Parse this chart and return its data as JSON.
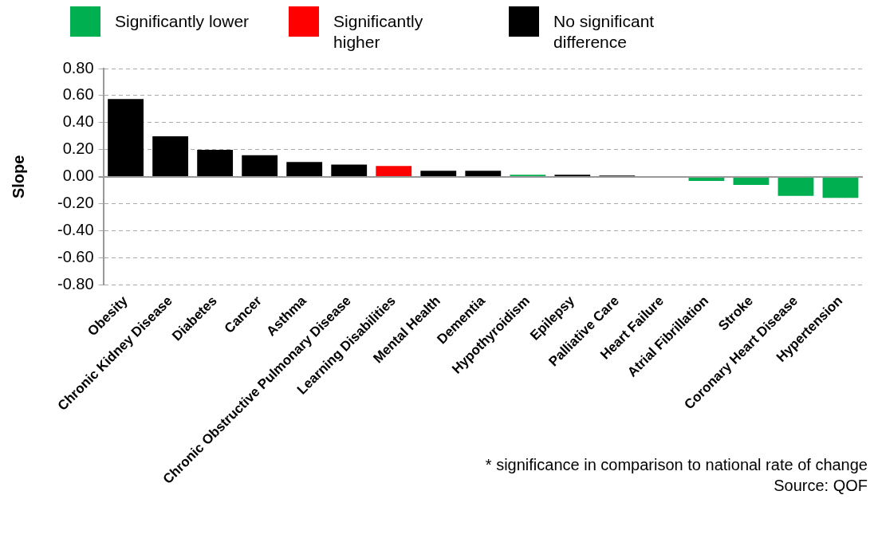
{
  "chart_data": {
    "type": "bar",
    "ylabel": "Slope",
    "stacked": true,
    "legend": "top",
    "grid": "y",
    "categories": [
      "Obesity",
      "Chronic Kidney Disease",
      "Diabetes",
      "Cancer",
      "Asthma",
      "Chronic Obstructive Pulmonary Disease",
      "Learning Disabilities",
      "Mental Health",
      "Dementia",
      "Hypothyroidism",
      "Epilepsy",
      "Palliative Care",
      "Heart Failure",
      "Atrial Fibrillation",
      "Stroke",
      "Coronary Heart Disease",
      "Hypertension"
    ],
    "series": [
      {
        "name": "Significantly lower",
        "color": "#00b050",
        "values": [
          null,
          null,
          null,
          null,
          null,
          null,
          null,
          null,
          null,
          0.015,
          null,
          null,
          null,
          -0.03,
          -0.06,
          -0.14,
          -0.155
        ]
      },
      {
        "name": "Significantly higher",
        "color": "#ff0000",
        "values": [
          null,
          null,
          null,
          null,
          null,
          null,
          0.08,
          null,
          null,
          null,
          null,
          null,
          null,
          null,
          null,
          null,
          null
        ]
      },
      {
        "name": "No significant difference",
        "color": "#000000",
        "values": [
          0.575,
          0.3,
          0.2,
          0.16,
          0.11,
          0.09,
          null,
          0.045,
          0.045,
          null,
          0.015,
          0.01,
          0,
          null,
          null,
          null,
          null
        ]
      }
    ],
    "ylim": [
      -0.8,
      0.8
    ],
    "yticks": [
      {
        "value": -0.8,
        "label": "-0.80"
      },
      {
        "value": -0.6,
        "label": "-0.60"
      },
      {
        "value": -0.4,
        "label": "-0.40"
      },
      {
        "value": -0.2,
        "label": "-0.20"
      },
      {
        "value": 0,
        "label": "0.00"
      },
      {
        "value": 0.2,
        "label": "0.20"
      },
      {
        "value": 0.4,
        "label": "0.40"
      },
      {
        "value": 0.6,
        "label": "0.60"
      },
      {
        "value": 0.8,
        "label": "0.80"
      }
    ],
    "annotations": [
      "* significance in comparison to national rate of change",
      "Source: QOF"
    ]
  }
}
